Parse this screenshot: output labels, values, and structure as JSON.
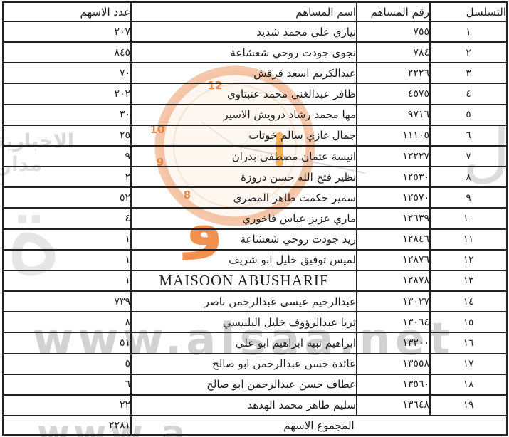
{
  "table": {
    "headers": {
      "serial": "التسلسل",
      "number": "رقم المساهم",
      "name": "اسم المساهم",
      "shares": "عدد الاسهم"
    },
    "rows": [
      {
        "serial": "١",
        "number": "٧٥٥",
        "name": "نيازي علي محمد شديد",
        "shares": "٢٠٧"
      },
      {
        "serial": "٢",
        "number": "٧٨٤",
        "name": "نجوى جودت روحي شعشاعة",
        "shares": "٨٤٥"
      },
      {
        "serial": "٣",
        "number": "٢٢٢٦",
        "name": "عبدالكريم اسعد قرقش",
        "shares": "٧٠"
      },
      {
        "serial": "٤",
        "number": "٤٥٧٥",
        "name": "ظافر عبدالغني محمد عنبتاوي",
        "shares": "٢٠٢"
      },
      {
        "serial": "٥",
        "number": "٩٧١٦",
        "name": "مها محمد رشاد درويش الاسير",
        "shares": "٣٠"
      },
      {
        "serial": "٦",
        "number": "١١١٠٥",
        "name": "جمال غازي سالم خوتات",
        "shares": "٢٥"
      },
      {
        "serial": "٧",
        "number": "١٢٢٢٧",
        "name": "انيسة عثمان مصطفى بدران",
        "shares": "٩"
      },
      {
        "serial": "٨",
        "number": "١٢٥٣٠",
        "name": "نظير فتح الله حسن دروزة",
        "shares": "٢"
      },
      {
        "serial": "٩",
        "number": "١٢٥٧٠",
        "name": "سمير حكمت طاهر المصري",
        "shares": "٥٢"
      },
      {
        "serial": "١٠",
        "number": "١٢٦٣٩",
        "name": "ماري عزيز عباس فاخوري",
        "shares": "٤"
      },
      {
        "serial": "١١",
        "number": "١٢٨٤٦",
        "name": "زيد جودت روحي شعشاعة",
        "shares": "١"
      },
      {
        "serial": "١٢",
        "number": "١٢٨٧٦",
        "name": "لميس توفيق خليل ابو شريف",
        "shares": "١"
      },
      {
        "serial": "١٣",
        "number": "١٢٨٧٨",
        "name": "MAISOON ABUSHARIF",
        "shares": "١"
      },
      {
        "serial": "١٤",
        "number": "١٣٠٢٧",
        "name": "عبدالرحيم عيسى عبدالرحمن ناصر",
        "shares": "٧٣٩"
      },
      {
        "serial": "١٥",
        "number": "١٣٠٦٤",
        "name": "ثريا عبدالرؤوف خليل البلبيسي",
        "shares": "٨"
      },
      {
        "serial": "١٦",
        "number": "١٣٢٠٠",
        "name": "ابراهيم نبيه ابراهيم ابو علي",
        "shares": "٥١"
      },
      {
        "serial": "١٧",
        "number": "١٣٥٥٨",
        "name": "عائدة حسن عبدالرحمن ابو صالح",
        "shares": "٥"
      },
      {
        "serial": "١٨",
        "number": "١٣٥٦٠",
        "name": "عطاف حسن عبدالرحمن ابو صالح",
        "shares": "٦"
      },
      {
        "serial": "١٩",
        "number": "١٣٦٤٨",
        "name": "سليم طاهر محمد الهدهد",
        "shares": "٢٢"
      }
    ],
    "footer": {
      "label": "المجموع الاسهم",
      "total": "٢٢٨١"
    }
  },
  "watermarks": {
    "site_url": "www.alsaa.net",
    "site_url_partial": "www.a",
    "side_text_line1": "الاخبارية",
    "side_text_line2": "مدار",
    "big_letter": "ة",
    "right_edge_letters": "ال",
    "orange_letter": "و",
    "clock": {
      "numbers": [
        "12",
        "10",
        "9",
        "8"
      ],
      "accent": "#e88a4f"
    }
  },
  "colors": {
    "border": "#222222",
    "text": "#1d1d1d",
    "watermark_gray": "#c8c8c8",
    "watermark_orange": "#ee7624"
  }
}
